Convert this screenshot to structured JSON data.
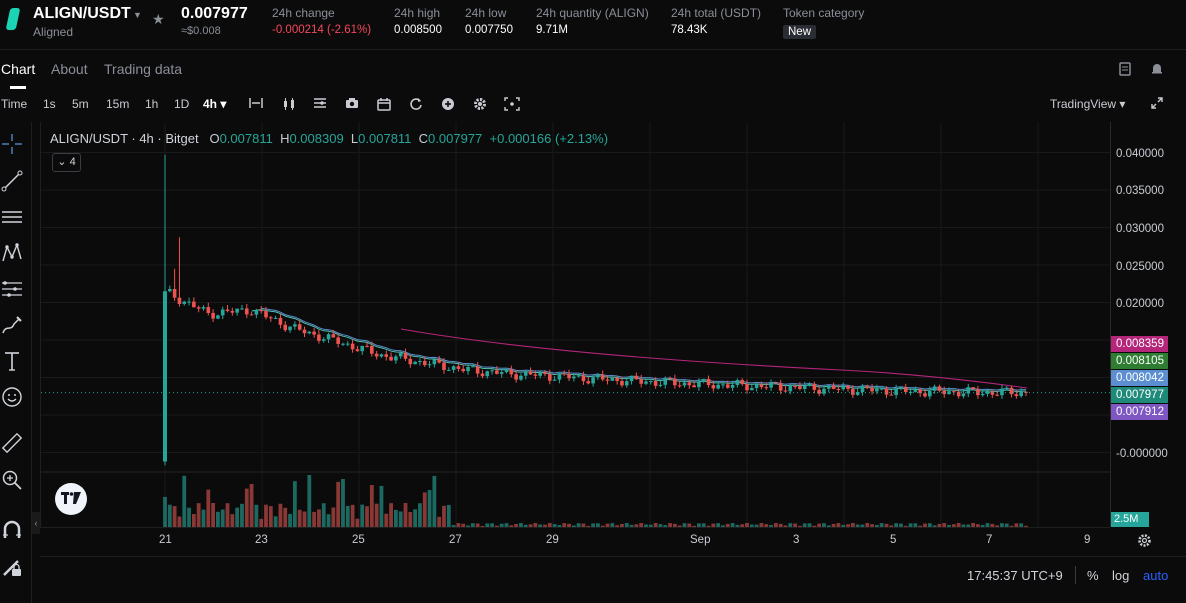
{
  "header": {
    "pair": "ALIGN/USDT",
    "pair_sub": "Aligned",
    "price": "0.007977",
    "price_usd": "≈$0.008",
    "change_label": "24h change",
    "change_value": "-0.000214 (-2.61%)",
    "high_label": "24h high",
    "high_value": "0.008500",
    "low_label": "24h low",
    "low_value": "0.007750",
    "qty_label": "24h quantity (ALIGN)",
    "qty_value": "9.71M",
    "total_label": "24h total (USDT)",
    "total_value": "78.43K",
    "category_label": "Token category",
    "category_value": "New"
  },
  "tabs": [
    {
      "label": "Chart",
      "active": true
    },
    {
      "label": "About"
    },
    {
      "label": "Trading data"
    }
  ],
  "toolbar": {
    "intervals": [
      "Time",
      "1s",
      "5m",
      "15m",
      "1h",
      "1D",
      "4h ▾"
    ],
    "active_interval": "4h",
    "provider": "TradingView ▾"
  },
  "legend": {
    "symbol": "ALIGN/USDT · 4h · Bitget",
    "o_label": "O",
    "o": "0.007811",
    "h_label": "H",
    "h": "0.008309",
    "l_label": "L",
    "l": "0.007811",
    "c_label": "C",
    "c": "0.007977",
    "change": "+0.000166 (+2.13%)",
    "indicators_count": "4"
  },
  "price_axis": {
    "ticks": [
      "0.040000",
      "0.035000",
      "0.030000",
      "0.025000",
      "0.020000",
      "-0.000000"
    ],
    "tags": [
      {
        "value": "0.008359",
        "color": "#b5257a"
      },
      {
        "value": "0.008105",
        "color": "#2e7d32"
      },
      {
        "value": "0.008042",
        "color": "#5b8fd1"
      },
      {
        "value": "0.007977",
        "color": "#1e8a7a"
      },
      {
        "value": "0.007912",
        "color": "#7e57c2"
      }
    ],
    "volume_tag": "2.5M"
  },
  "time_axis": {
    "ticks": [
      "21",
      "23",
      "25",
      "27",
      "29",
      "Sep",
      "3",
      "5",
      "7",
      "9"
    ]
  },
  "footer": {
    "clock": "17:45:37 UTC+9",
    "percent": "%",
    "log": "log",
    "auto": "auto"
  },
  "colors": {
    "up": "#26a69a",
    "down": "#ef5350",
    "ma_pink": "#b5257a",
    "ma_blue": "#5b8fd1",
    "ma_teal": "#4fc3b0"
  },
  "chart_data": {
    "type": "candlestick",
    "interval": "4h",
    "ylim": [
      0,
      0.04
    ],
    "x": [
      "21",
      "23",
      "25",
      "27",
      "29",
      "Sep",
      "3",
      "5",
      "7",
      "9"
    ],
    "approx_close_series": [
      0.0215,
      0.0185,
      0.019,
      0.0165,
      0.0148,
      0.013,
      0.012,
      0.011,
      0.0105,
      0.0102,
      0.0098,
      0.0095,
      0.0092,
      0.009,
      0.0088,
      0.0086,
      0.0084,
      0.0082,
      0.0081,
      0.008,
      0.008
    ],
    "spike_high": 0.0397,
    "spike_low": -0.0012,
    "last_close": 0.007977,
    "volume_scale": "2.5M"
  }
}
